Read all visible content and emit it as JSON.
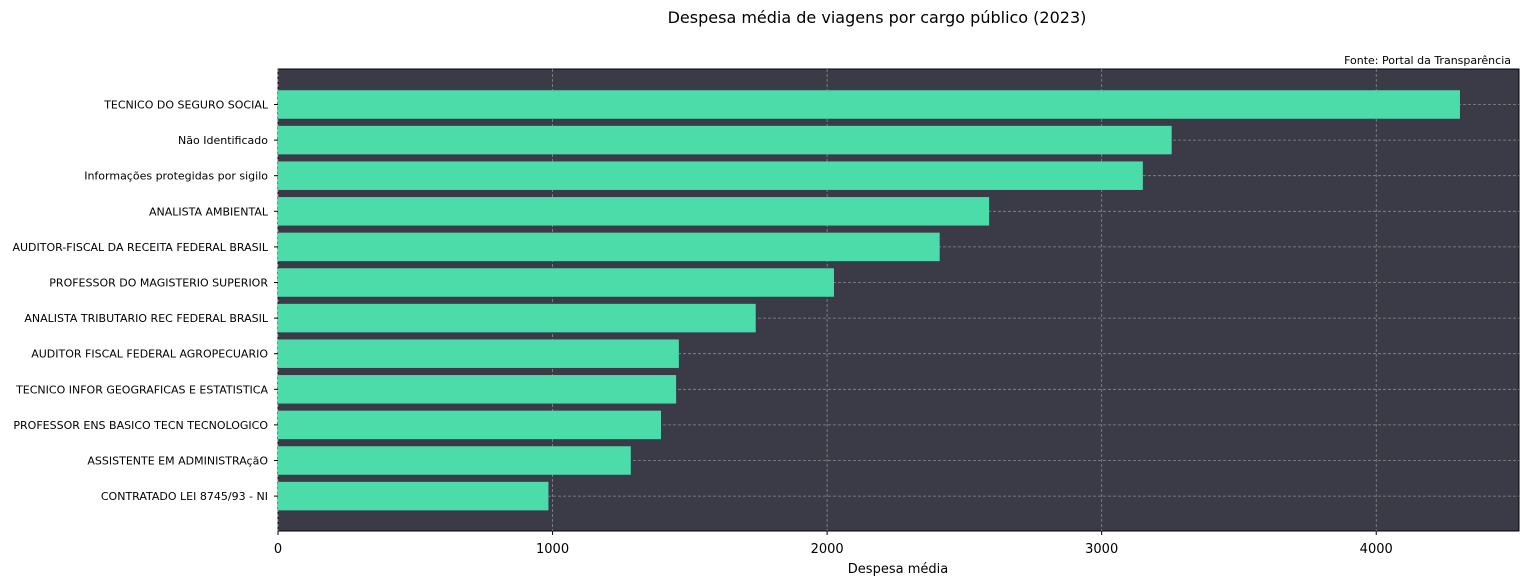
{
  "chart_data": {
    "type": "bar",
    "orientation": "horizontal",
    "title": "Despesa média de viagens por cargo público (2023)",
    "source_note": "Fonte: Portal da Transparência",
    "xlabel": "Despesa média",
    "ylabel": "",
    "xlim": [
      0,
      4520
    ],
    "xticks": [
      0,
      1000,
      2000,
      3000,
      4000
    ],
    "grid": true,
    "categories": [
      "TECNICO DO SEGURO SOCIAL",
      "Não Identificado",
      "Informações protegidas por sigilo",
      "ANALISTA AMBIENTAL",
      "AUDITOR-FISCAL DA RECEITA FEDERAL BRASIL",
      "PROFESSOR DO MAGISTERIO SUPERIOR",
      "ANALISTA TRIBUTARIO REC FEDERAL BRASIL",
      "AUDITOR FISCAL FEDERAL AGROPECUARIO",
      "TECNICO INFOR GEOGRAFICAS E ESTATISTICA",
      "PROFESSOR ENS BASICO TECN TECNOLOGICO",
      "ASSISTENTE EM ADMINISTRAçãO",
      "CONTRATADO LEI 8745/93 - NI"
    ],
    "values": [
      4305,
      3255,
      3150,
      2590,
      2410,
      2025,
      1740,
      1460,
      1450,
      1395,
      1285,
      985
    ],
    "colors": {
      "bar": "#4cdca9",
      "plot_background": "#3b3b47",
      "grid": "#8a8a8a"
    }
  }
}
